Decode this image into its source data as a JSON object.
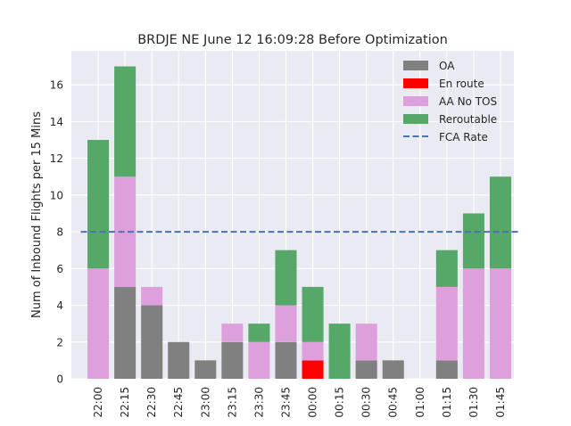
{
  "chart_data": {
    "type": "bar",
    "stacked": true,
    "title": "BRDJE NE June 12 16:09:28 Before Optimization",
    "xlabel": "",
    "ylabel": "Num of Inbound Flights per 15 Mins",
    "ylim": [
      0,
      17.85
    ],
    "yticks": [
      0,
      2,
      4,
      6,
      8,
      10,
      12,
      14,
      16
    ],
    "grid": true,
    "legend_position": "top-right",
    "categories": [
      "22:00",
      "22:15",
      "22:30",
      "22:45",
      "23:00",
      "23:15",
      "23:30",
      "23:45",
      "00:00",
      "00:15",
      "00:30",
      "00:45",
      "01:00",
      "01:15",
      "01:30",
      "01:45"
    ],
    "series": [
      {
        "name": "OA",
        "color": "#808080",
        "values": [
          0,
          5,
          4,
          2,
          1,
          2,
          0,
          2,
          0,
          0,
          1,
          1,
          0,
          1,
          0,
          0
        ]
      },
      {
        "name": "En route",
        "color": "#ff0000",
        "values": [
          0,
          0,
          0,
          0,
          0,
          0,
          0,
          0,
          1,
          0,
          0,
          0,
          0,
          0,
          0,
          0
        ]
      },
      {
        "name": "AA No TOS",
        "color": "#dda0dd",
        "values": [
          6,
          6,
          1,
          0,
          0,
          1,
          2,
          2,
          1,
          0,
          2,
          0,
          0,
          4,
          6,
          6
        ]
      },
      {
        "name": "Reroutable",
        "color": "#55a868",
        "values": [
          7,
          6,
          0,
          0,
          0,
          0,
          1,
          3,
          3,
          3,
          0,
          0,
          0,
          2,
          3,
          5
        ]
      }
    ],
    "reference_line": {
      "name": "FCA Rate",
      "value": 8,
      "color": "#4c72b0",
      "style": "dashed"
    }
  }
}
